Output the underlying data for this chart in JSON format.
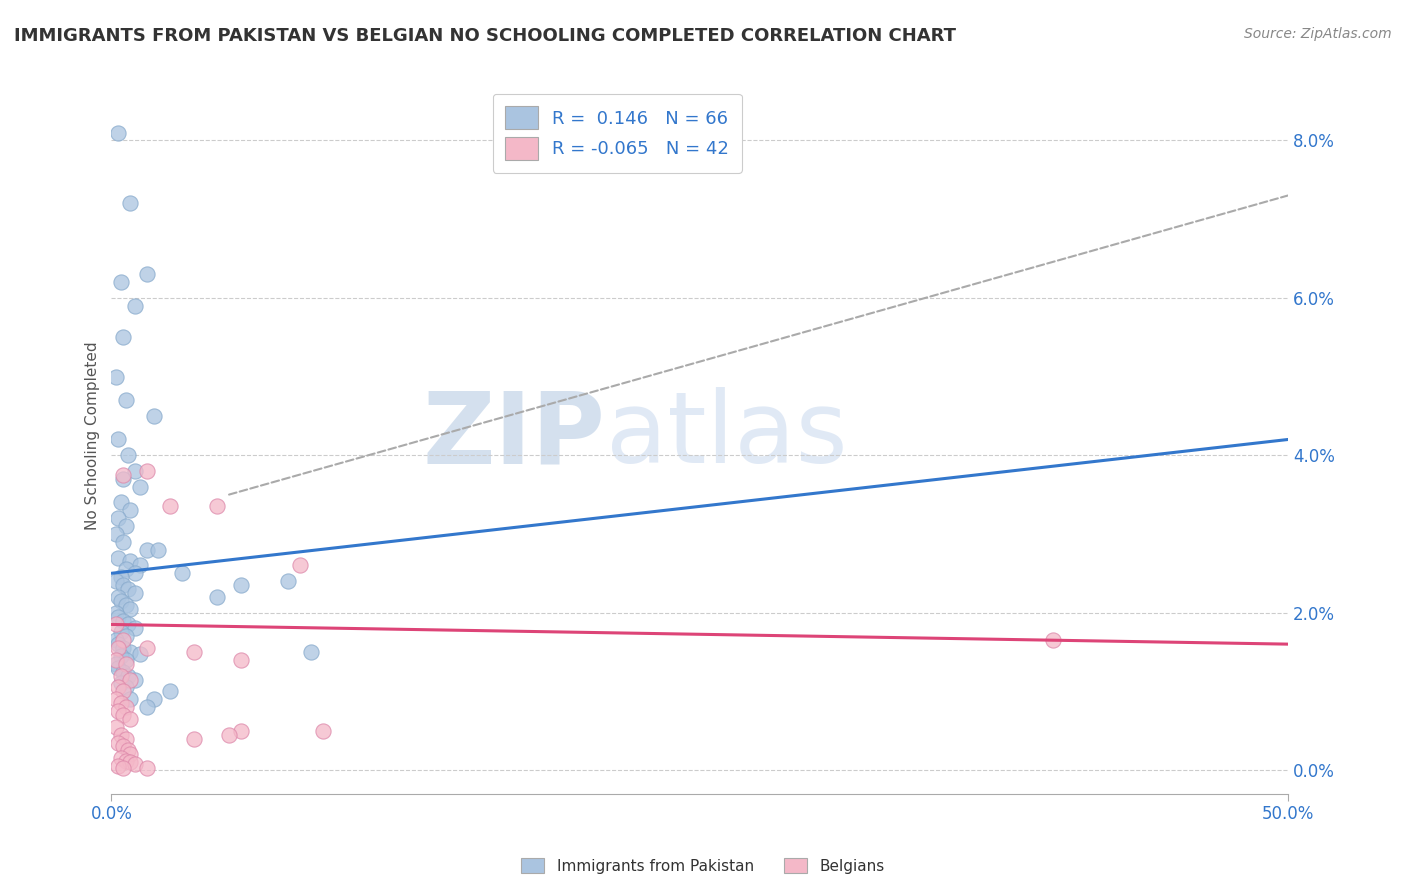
{
  "title": "IMMIGRANTS FROM PAKISTAN VS BELGIAN NO SCHOOLING COMPLETED CORRELATION CHART",
  "source": "Source: ZipAtlas.com",
  "ylabel": "No Schooling Completed",
  "right_ytick_vals": [
    0.0,
    2.0,
    4.0,
    6.0,
    8.0
  ],
  "legend_entries": [
    {
      "label": "Immigrants from Pakistan",
      "R": " 0.146",
      "N": "66",
      "color": "#aac4e0"
    },
    {
      "label": "Belgians",
      "R": "-0.065",
      "N": "42",
      "color": "#f4b8c8"
    }
  ],
  "blue_scatter": [
    [
      0.3,
      8.1
    ],
    [
      0.8,
      7.2
    ],
    [
      1.5,
      6.3
    ],
    [
      0.4,
      6.2
    ],
    [
      1.0,
      5.9
    ],
    [
      0.5,
      5.5
    ],
    [
      0.2,
      5.0
    ],
    [
      0.6,
      4.7
    ],
    [
      1.8,
      4.5
    ],
    [
      0.3,
      4.2
    ],
    [
      0.7,
      4.0
    ],
    [
      1.0,
      3.8
    ],
    [
      0.5,
      3.7
    ],
    [
      1.2,
      3.6
    ],
    [
      0.4,
      3.4
    ],
    [
      0.8,
      3.3
    ],
    [
      0.3,
      3.2
    ],
    [
      0.6,
      3.1
    ],
    [
      0.2,
      3.0
    ],
    [
      0.5,
      2.9
    ],
    [
      1.5,
      2.8
    ],
    [
      0.3,
      2.7
    ],
    [
      0.8,
      2.65
    ],
    [
      1.2,
      2.6
    ],
    [
      0.6,
      2.55
    ],
    [
      1.0,
      2.5
    ],
    [
      0.4,
      2.45
    ],
    [
      0.2,
      2.4
    ],
    [
      0.5,
      2.35
    ],
    [
      0.7,
      2.3
    ],
    [
      1.0,
      2.25
    ],
    [
      0.3,
      2.2
    ],
    [
      0.4,
      2.15
    ],
    [
      0.6,
      2.1
    ],
    [
      0.8,
      2.05
    ],
    [
      0.2,
      2.0
    ],
    [
      0.3,
      1.95
    ],
    [
      0.5,
      1.9
    ],
    [
      0.7,
      1.85
    ],
    [
      1.0,
      1.8
    ],
    [
      0.4,
      1.75
    ],
    [
      0.6,
      1.7
    ],
    [
      0.2,
      1.65
    ],
    [
      0.3,
      1.6
    ],
    [
      0.5,
      1.55
    ],
    [
      0.8,
      1.5
    ],
    [
      1.2,
      1.48
    ],
    [
      0.4,
      1.45
    ],
    [
      0.6,
      1.4
    ],
    [
      0.2,
      1.35
    ],
    [
      0.3,
      1.3
    ],
    [
      0.5,
      1.25
    ],
    [
      0.7,
      1.2
    ],
    [
      1.0,
      1.15
    ],
    [
      0.4,
      1.1
    ],
    [
      0.6,
      1.05
    ],
    [
      2.0,
      2.8
    ],
    [
      3.0,
      2.5
    ],
    [
      4.5,
      2.2
    ],
    [
      7.5,
      2.4
    ],
    [
      1.8,
      0.9
    ],
    [
      2.5,
      1.0
    ],
    [
      0.8,
      0.9
    ],
    [
      1.5,
      0.8
    ],
    [
      5.5,
      2.35
    ],
    [
      8.5,
      1.5
    ]
  ],
  "pink_scatter": [
    [
      0.2,
      1.85
    ],
    [
      0.5,
      1.65
    ],
    [
      0.3,
      1.55
    ],
    [
      0.2,
      1.4
    ],
    [
      0.6,
      1.35
    ],
    [
      0.4,
      1.2
    ],
    [
      0.8,
      1.15
    ],
    [
      0.3,
      1.05
    ],
    [
      0.5,
      1.0
    ],
    [
      1.5,
      1.55
    ],
    [
      0.2,
      0.9
    ],
    [
      0.4,
      0.85
    ],
    [
      0.6,
      0.8
    ],
    [
      0.3,
      0.75
    ],
    [
      0.5,
      0.7
    ],
    [
      0.8,
      0.65
    ],
    [
      0.2,
      0.55
    ],
    [
      0.4,
      0.45
    ],
    [
      0.6,
      0.4
    ],
    [
      0.3,
      0.35
    ],
    [
      0.5,
      0.3
    ],
    [
      0.7,
      0.25
    ],
    [
      0.8,
      0.2
    ],
    [
      0.4,
      0.15
    ],
    [
      0.6,
      0.12
    ],
    [
      0.8,
      0.1
    ],
    [
      1.0,
      0.08
    ],
    [
      0.3,
      0.05
    ],
    [
      0.5,
      0.03
    ],
    [
      1.5,
      0.02
    ],
    [
      2.5,
      3.35
    ],
    [
      4.5,
      3.35
    ],
    [
      0.5,
      3.75
    ],
    [
      1.5,
      3.8
    ],
    [
      3.5,
      1.5
    ],
    [
      5.5,
      1.4
    ],
    [
      8.0,
      2.6
    ],
    [
      5.5,
      0.5
    ],
    [
      5.0,
      0.45
    ],
    [
      9.0,
      0.5
    ],
    [
      40.0,
      1.65
    ],
    [
      3.5,
      0.4
    ]
  ],
  "blue_line_x": [
    0.0,
    50.0
  ],
  "blue_line_y": [
    2.5,
    4.2
  ],
  "pink_line_x": [
    0.0,
    50.0
  ],
  "pink_line_y": [
    1.85,
    1.6
  ],
  "gray_line_x": [
    5.0,
    50.0
  ],
  "gray_line_y": [
    3.5,
    7.3
  ],
  "xlim": [
    0.0,
    50.0
  ],
  "ylim": [
    -0.3,
    8.8
  ],
  "plot_ylim": [
    0.0,
    8.8
  ],
  "watermark_zip": "ZIP",
  "watermark_atlas": "atlas",
  "watermark_color_zip": "#c8d8ee",
  "watermark_color_atlas": "#c8d8ee",
  "background_color": "#ffffff",
  "title_fontsize": 13,
  "source_fontsize": 10,
  "xtick_positions": [
    0.0,
    50.0
  ],
  "xtick_labels": [
    "0.0%",
    "50.0%"
  ]
}
